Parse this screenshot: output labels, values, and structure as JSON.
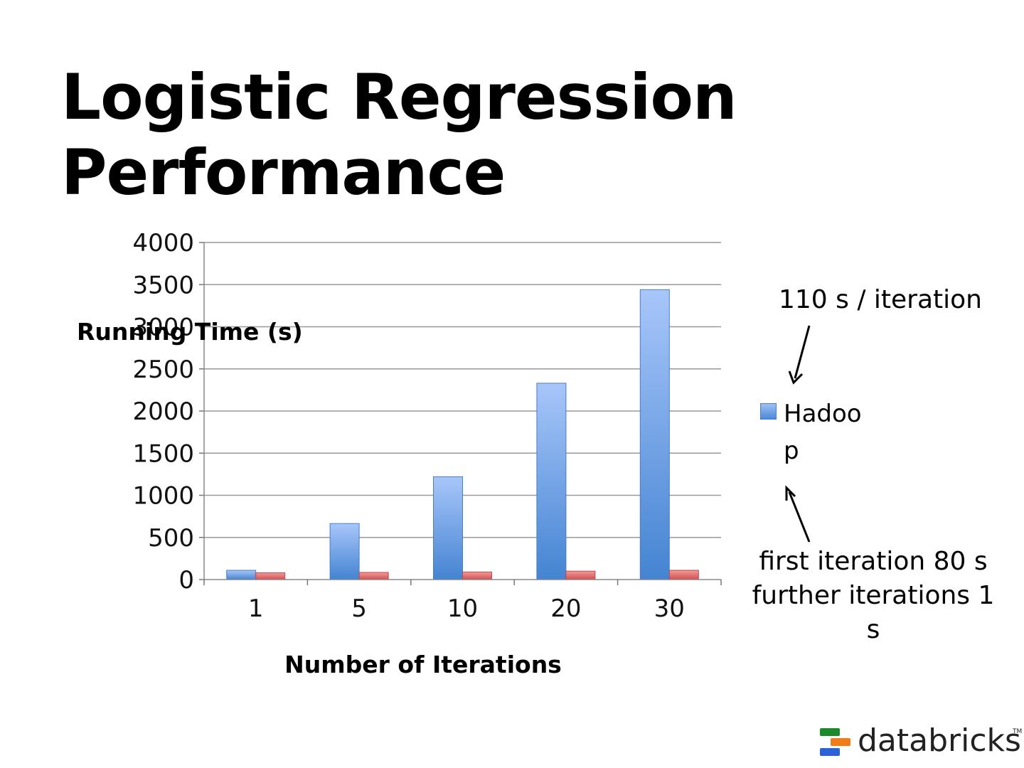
{
  "slide": {
    "title_line1": "Logistic Regression",
    "title_line2": "Performance"
  },
  "annotations": {
    "top": "110 s / iteration",
    "bottom": "first iteration 80 s further iterations 1 s"
  },
  "logo": {
    "text": "databricks",
    "tm": "TM",
    "colors": [
      "#1a8a2a",
      "#f07c1a",
      "#2a62d8"
    ]
  },
  "colors": {
    "hadoop": "#5b93e0",
    "second_series": "#e06060",
    "grid": "#999999"
  },
  "chart_data": {
    "type": "bar",
    "title": "",
    "xlabel": "Number of Iterations",
    "ylabel": "Running Time (s)",
    "categories": [
      "1",
      "5",
      "10",
      "20",
      "30"
    ],
    "ylim": [
      0,
      4000
    ],
    "yticks": [
      "0",
      "500",
      "1000",
      "1500",
      "2000",
      "2500",
      "3000",
      "3500",
      "4000"
    ],
    "grid": true,
    "legend_position": "right",
    "series": [
      {
        "name": "Hadoop",
        "values": [
          110,
          665,
          1220,
          2330,
          3440
        ]
      },
      {
        "values": [
          80,
          85,
          90,
          100,
          110
        ]
      }
    ]
  }
}
